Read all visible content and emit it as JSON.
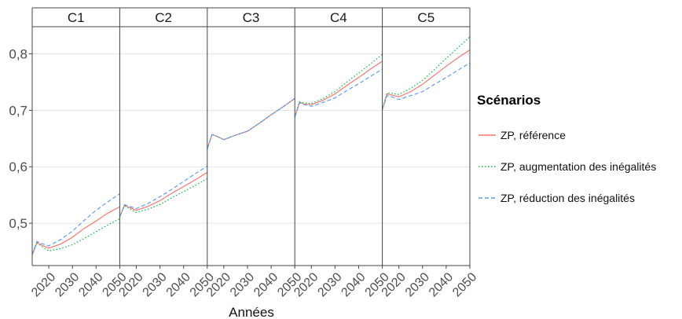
{
  "chart_data": {
    "type": "line",
    "facets": [
      "C1",
      "C2",
      "C3",
      "C4",
      "C5"
    ],
    "xlabel": "Années",
    "ylabel": "",
    "xlim": [
      2013,
      2050
    ],
    "ylim": [
      0.425,
      0.848
    ],
    "x_ticks": [
      "2020",
      "2030",
      "2040",
      "2050"
    ],
    "y_ticks": [
      "0,5",
      "0,6",
      "0,7",
      "0,8"
    ],
    "grid": true,
    "legend_position": "right",
    "legend_title": "Scénarios",
    "series_meta": [
      {
        "key": "ref",
        "name": "ZP, référence",
        "color": "#f8766d",
        "dash": "solid"
      },
      {
        "key": "aug",
        "name": "ZP, augmentation des inégalités",
        "color": "#00ba38",
        "dash": "dotted"
      },
      {
        "key": "red",
        "name": "ZP, réduction des inégalités",
        "color": "#619cff",
        "dash": "dashed"
      }
    ],
    "x": [
      2013,
      2015,
      2017,
      2020,
      2025,
      2030,
      2035,
      2040,
      2045,
      2050
    ],
    "panels": [
      {
        "facet": "C1",
        "series": {
          "ref": [
            0.444,
            0.466,
            0.461,
            0.456,
            0.463,
            0.475,
            0.491,
            0.504,
            0.518,
            0.529
          ],
          "aug": [
            0.444,
            0.465,
            0.459,
            0.451,
            0.455,
            0.462,
            0.473,
            0.485,
            0.497,
            0.508
          ],
          "red": [
            0.444,
            0.468,
            0.464,
            0.46,
            0.471,
            0.486,
            0.505,
            0.523,
            0.538,
            0.552
          ]
        }
      },
      {
        "facet": "C2",
        "series": {
          "ref": [
            0.511,
            0.532,
            0.528,
            0.523,
            0.53,
            0.54,
            0.553,
            0.565,
            0.577,
            0.59
          ],
          "aug": [
            0.511,
            0.531,
            0.526,
            0.519,
            0.525,
            0.533,
            0.545,
            0.556,
            0.567,
            0.579
          ],
          "red": [
            0.511,
            0.533,
            0.53,
            0.526,
            0.535,
            0.547,
            0.56,
            0.574,
            0.588,
            0.601
          ]
        }
      },
      {
        "facet": "C3",
        "series": {
          "ref": [
            0.632,
            0.657,
            0.654,
            0.648,
            0.656,
            0.663,
            0.677,
            0.692,
            0.706,
            0.721
          ],
          "aug": [
            0.632,
            0.657,
            0.654,
            0.648,
            0.656,
            0.663,
            0.677,
            0.692,
            0.706,
            0.721
          ],
          "red": [
            0.632,
            0.657,
            0.654,
            0.648,
            0.656,
            0.663,
            0.677,
            0.692,
            0.706,
            0.721
          ]
        }
      },
      {
        "facet": "C4",
        "series": {
          "ref": [
            0.688,
            0.714,
            0.711,
            0.71,
            0.718,
            0.729,
            0.744,
            0.758,
            0.773,
            0.787
          ],
          "aug": [
            0.688,
            0.715,
            0.713,
            0.712,
            0.721,
            0.733,
            0.75,
            0.766,
            0.782,
            0.799
          ],
          "red": [
            0.688,
            0.713,
            0.71,
            0.707,
            0.714,
            0.722,
            0.735,
            0.747,
            0.76,
            0.773
          ]
        }
      },
      {
        "facet": "C5",
        "series": {
          "ref": [
            0.701,
            0.729,
            0.727,
            0.724,
            0.733,
            0.746,
            0.762,
            0.778,
            0.793,
            0.807
          ],
          "aug": [
            0.701,
            0.731,
            0.73,
            0.728,
            0.739,
            0.753,
            0.772,
            0.792,
            0.811,
            0.83
          ],
          "red": [
            0.701,
            0.726,
            0.724,
            0.719,
            0.726,
            0.733,
            0.746,
            0.758,
            0.771,
            0.784
          ]
        }
      }
    ]
  }
}
